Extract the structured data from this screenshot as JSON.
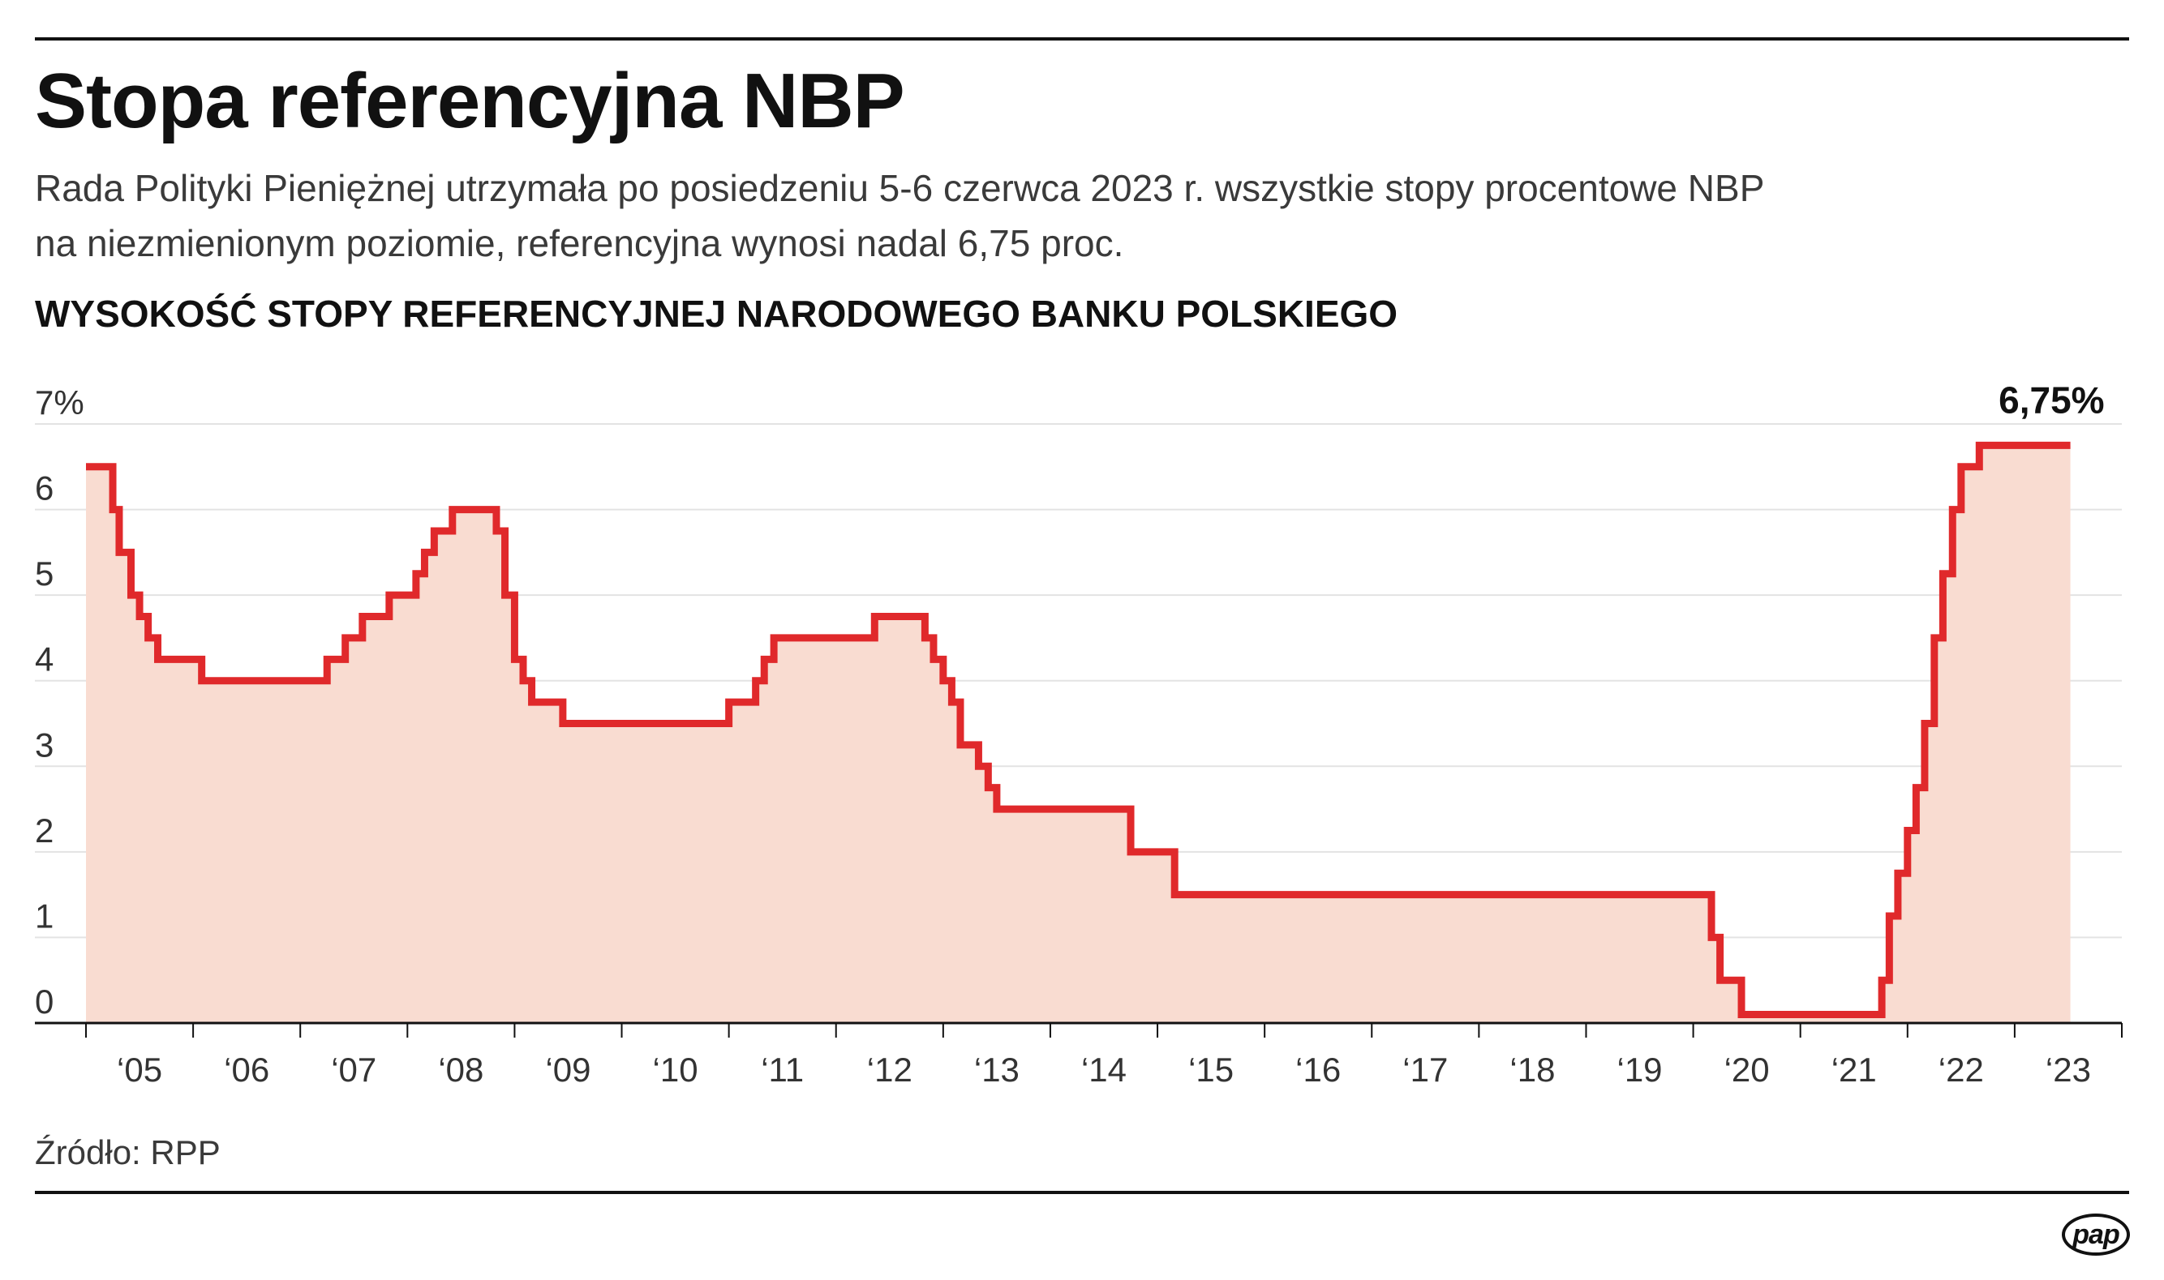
{
  "header": {
    "title": "Stopa referencyjna NBP",
    "subtitle_line1": "Rada Polityki Pieniężnej utrzymała po posiedzeniu 5-6 czerwca 2023 r. wszystkie stopy procentowe NBP",
    "subtitle_line2": "na niezmienionym poziomie, referencyjna wynosi nadal 6,75 proc.",
    "chart_heading": "WYSOKOŚĆ STOPY REFERENCYJNEJ NARODOWEGO BANKU POLSKIEGO"
  },
  "footer": {
    "source": "Źródło: RPP",
    "logo": "pap"
  },
  "colors": {
    "line": "#e0292b",
    "fill": "#f9dcd1",
    "grid": "#e3e3e3",
    "axis": "#111111",
    "text": "#1a1a1a"
  },
  "chart_data": {
    "type": "area",
    "step": "after",
    "title": "WYSOKOŚĆ STOPY REFERENCYJNEJ NARODOWEGO BANKU POLSKIEGO",
    "xlabel": "",
    "ylabel": "",
    "ylim": [
      0,
      7
    ],
    "xlim": [
      2005.0,
      2024.0
    ],
    "grid": true,
    "y_ticks": [
      {
        "value": 7,
        "label": "7%"
      },
      {
        "value": 6,
        "label": "6"
      },
      {
        "value": 5,
        "label": "5"
      },
      {
        "value": 4,
        "label": "4"
      },
      {
        "value": 3,
        "label": "3"
      },
      {
        "value": 2,
        "label": "2"
      },
      {
        "value": 1,
        "label": "1"
      },
      {
        "value": 0,
        "label": "0"
      }
    ],
    "x_ticks": [
      {
        "value": 2005.5,
        "label": "‘05"
      },
      {
        "value": 2006.5,
        "label": "‘06"
      },
      {
        "value": 2007.5,
        "label": "‘07"
      },
      {
        "value": 2008.5,
        "label": "‘08"
      },
      {
        "value": 2009.5,
        "label": "‘09"
      },
      {
        "value": 2010.5,
        "label": "‘10"
      },
      {
        "value": 2011.5,
        "label": "‘11"
      },
      {
        "value": 2012.5,
        "label": "‘12"
      },
      {
        "value": 2013.5,
        "label": "‘13"
      },
      {
        "value": 2014.5,
        "label": "‘14"
      },
      {
        "value": 2015.5,
        "label": "‘15"
      },
      {
        "value": 2016.5,
        "label": "‘16"
      },
      {
        "value": 2017.5,
        "label": "‘17"
      },
      {
        "value": 2018.5,
        "label": "‘18"
      },
      {
        "value": 2019.5,
        "label": "‘19"
      },
      {
        "value": 2020.5,
        "label": "‘20"
      },
      {
        "value": 2021.5,
        "label": "‘21"
      },
      {
        "value": 2022.5,
        "label": "‘22"
      },
      {
        "value": 2023.5,
        "label": "‘23"
      }
    ],
    "series": [
      {
        "x": [
          2005.0,
          2005.25,
          2005.31,
          2005.42,
          2005.5,
          2005.58,
          2005.67,
          2006.08,
          2006.16,
          2007.25,
          2007.42,
          2007.58,
          2007.83,
          2008.08,
          2008.16,
          2008.25,
          2008.33,
          2008.42,
          2008.83,
          2008.91,
          2009.0,
          2009.08,
          2009.16,
          2009.25,
          2009.45,
          2011.0,
          2011.25,
          2011.33,
          2011.42,
          2012.36,
          2012.83,
          2012.91,
          2013.0,
          2013.08,
          2013.16,
          2013.33,
          2013.42,
          2013.5,
          2014.75,
          2015.16,
          2018.0,
          2020.17,
          2020.25,
          2020.33,
          2020.45,
          2021.76,
          2021.83,
          2021.91,
          2022.0,
          2022.08,
          2022.16,
          2022.25,
          2022.33,
          2022.42,
          2022.5,
          2022.58,
          2022.67,
          2022.75,
          2022.91,
          2023.52
        ],
        "y": [
          6.5,
          6.0,
          5.5,
          5.0,
          4.75,
          4.5,
          4.25,
          4.0,
          4.0,
          4.25,
          4.5,
          4.75,
          5.0,
          5.25,
          5.5,
          5.75,
          5.75,
          6.0,
          5.75,
          5.0,
          4.25,
          4.0,
          3.75,
          3.75,
          3.5,
          3.75,
          4.0,
          4.25,
          4.5,
          4.75,
          4.5,
          4.25,
          4.0,
          3.75,
          3.25,
          3.0,
          2.75,
          2.5,
          2.0,
          1.5,
          1.5,
          1.0,
          0.5,
          0.5,
          0.1,
          0.5,
          1.25,
          1.75,
          2.25,
          2.75,
          3.5,
          4.5,
          5.25,
          6.0,
          6.5,
          6.5,
          6.75,
          6.75,
          6.75,
          6.75
        ]
      }
    ],
    "annotations": [
      {
        "text": "6,75%",
        "x": 2023.52,
        "y": 6.75
      }
    ]
  }
}
